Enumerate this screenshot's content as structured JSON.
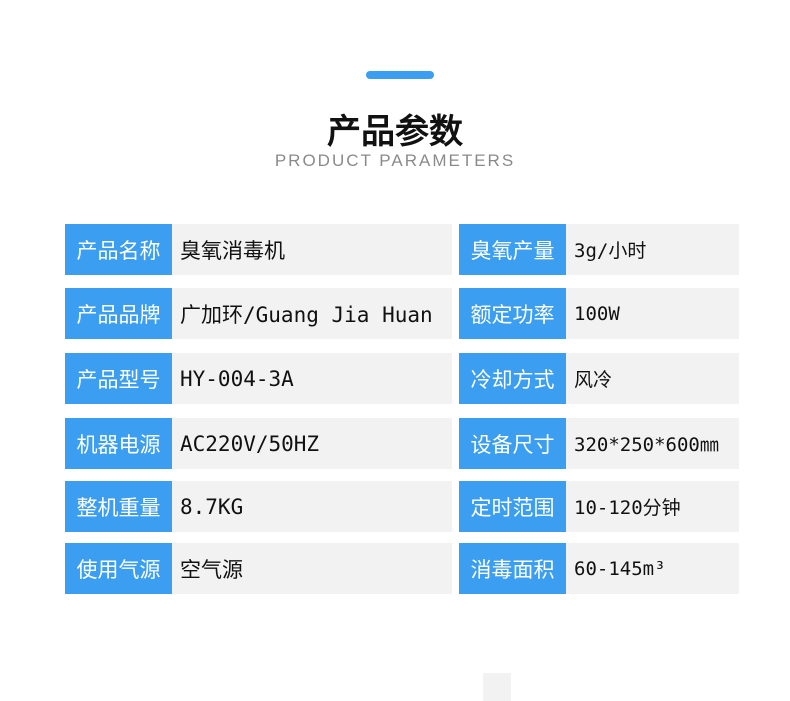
{
  "header": {
    "title": "产品参数",
    "subtitle": "PRODUCT PARAMETERS",
    "accent": "#3c9ef0"
  },
  "rows": [
    {
      "l1": "产品名称",
      "v1": "臭氧消毒机",
      "l2": "臭氧产量",
      "v2": "3g/小时"
    },
    {
      "l1": "产品品牌",
      "v1": "广加环/Guang Jia Huan",
      "l2": "额定功率",
      "v2": "100W"
    },
    {
      "l1": "产品型号",
      "v1": "HY-004-3A",
      "l2": "冷却方式",
      "v2": "风冷"
    },
    {
      "l1": "机器电源",
      "v1": "AC220V/50HZ",
      "l2": "设备尺寸",
      "v2": "320*250*600㎜"
    },
    {
      "l1": "整机重量",
      "v1": "8.7KG",
      "l2": "定时范围",
      "v2": "10-120分钟"
    },
    {
      "l1": "使用气源",
      "v1": "空气源",
      "l2": "消毒面积",
      "v2": "60-145m³"
    }
  ]
}
